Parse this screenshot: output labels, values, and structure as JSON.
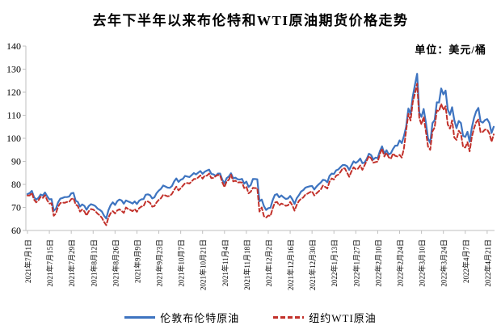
{
  "title": "去年下半年以来布伦特和WTI原油期货价格走势",
  "unit_label": "单位：美元/桶",
  "legend": {
    "brent_label": "伦敦布伦特原油",
    "wti_label": "纽约WTI原油"
  },
  "colors": {
    "brent": "#3E74C0",
    "wti": "#C2312B",
    "axis": "#BFBFBF",
    "text": "#000000"
  },
  "chart_data": {
    "type": "line",
    "title": "去年下半年以来布伦特和WTI原油期货价格走势",
    "ylabel": "美元/桶",
    "ylim": [
      60,
      140
    ],
    "ytick_step": 10,
    "grid": false,
    "legend_position": "bottom",
    "points_per_tick": 10,
    "x_tick_labels": [
      "2021年7月1日",
      "2021年7月15日",
      "2021年7月29日",
      "2021年8月12日",
      "2021年8月26日",
      "2021年9月9日",
      "2021年9月23日",
      "2021年10月7日",
      "2021年10月21日",
      "2021年11月4日",
      "2021年11月18日",
      "2021年12月2日",
      "2021年12月16日",
      "2021年12月30日",
      "2022年1月13日",
      "2022年1月27日",
      "2022年2月10日",
      "2022年2月24日",
      "2022年3月10日",
      "2022年3月24日",
      "2022年4月7日",
      "2022年4月21日"
    ],
    "series": [
      {
        "name": "伦敦布伦特原油",
        "color": "#3E74C0",
        "style": "solid",
        "values": [
          75.8,
          76.2,
          77.2,
          74.5,
          73.4,
          74.1,
          75.6,
          75.2,
          76.5,
          74.8,
          73.5,
          73.6,
          68.6,
          69.4,
          72.2,
          73.8,
          74.1,
          74.5,
          74.5,
          74.7,
          76.1,
          76.3,
          72.9,
          72.4,
          70.4,
          71.3,
          70.7,
          69.0,
          70.6,
          71.4,
          71.1,
          70.6,
          69.5,
          69.0,
          68.2,
          66.4,
          65.2,
          68.8,
          71.0,
          72.2,
          71.1,
          72.7,
          73.4,
          73.0,
          71.6,
          73.0,
          72.6,
          72.2,
          71.7,
          72.6,
          71.5,
          72.9,
          73.5,
          73.6,
          75.5,
          75.7,
          75.3,
          73.9,
          74.4,
          76.2,
          77.3,
          78.1,
          79.5,
          79.1,
          78.6,
          78.5,
          79.3,
          81.3,
          82.6,
          81.1,
          82.0,
          82.4,
          83.7,
          83.4,
          83.2,
          84.0,
          84.9,
          84.3,
          85.1,
          85.8,
          84.6,
          85.5,
          86.0,
          86.4,
          84.6,
          84.3,
          83.7,
          84.7,
          84.7,
          82.0,
          80.5,
          82.7,
          83.4,
          84.8,
          82.6,
          82.9,
          82.2,
          82.1,
          82.4,
          80.3,
          81.2,
          78.9,
          79.7,
          82.3,
          82.3,
          82.2,
          72.7,
          73.4,
          70.6,
          68.9,
          69.7,
          69.9,
          73.1,
          75.4,
          75.8,
          74.4,
          75.2,
          74.4,
          73.7,
          73.9,
          75.0,
          73.5,
          71.5,
          74.0,
          75.3,
          76.9,
          77.5,
          78.6,
          78.9,
          79.2,
          79.3,
          77.8,
          79.0,
          80.0,
          80.8,
          82.0,
          81.8,
          80.9,
          83.7,
          84.7,
          84.5,
          86.1,
          86.5,
          87.5,
          88.4,
          88.4,
          87.9,
          86.3,
          88.2,
          90.0,
          89.3,
          90.0,
          91.2,
          89.2,
          89.5,
          91.1,
          93.3,
          92.7,
          90.8,
          91.6,
          91.4,
          94.4,
          96.5,
          93.3,
          94.8,
          93.0,
          93.5,
          95.4,
          96.8,
          96.8,
          99.1,
          97.9,
          101.0,
          105.0,
          112.9,
          110.5,
          118.1,
          123.2,
          128.0,
          111.1,
          109.3,
          112.7,
          106.9,
          99.9,
          98.0,
          106.6,
          107.9,
          115.6,
          115.5,
          121.6,
          119.0,
          120.7,
          112.5,
          110.2,
          113.5,
          107.9,
          104.4,
          107.5,
          106.6,
          101.1,
          100.6,
          102.8,
          98.5,
          104.6,
          108.8,
          111.7,
          113.2,
          107.3,
          106.8,
          107.9,
          108.3,
          106.7,
          102.3,
          105.0
        ]
      },
      {
        "name": "纽约WTI原油",
        "color": "#C2312B",
        "style": "dashed",
        "values": [
          75.2,
          75.2,
          76.3,
          73.4,
          72.2,
          73.0,
          74.6,
          74.1,
          75.3,
          73.1,
          71.7,
          71.8,
          66.4,
          67.4,
          70.3,
          71.9,
          72.1,
          72.0,
          72.4,
          72.4,
          73.6,
          74.0,
          71.3,
          70.6,
          68.2,
          69.1,
          68.3,
          66.5,
          68.3,
          69.3,
          69.1,
          68.4,
          67.3,
          66.6,
          65.5,
          63.7,
          62.3,
          65.6,
          67.5,
          68.4,
          67.4,
          68.7,
          69.2,
          68.5,
          67.6,
          70.0,
          69.3,
          68.9,
          68.4,
          69.3,
          68.1,
          69.7,
          70.4,
          70.5,
          72.6,
          72.6,
          72.0,
          70.3,
          70.6,
          72.2,
          73.3,
          74.0,
          75.5,
          75.2,
          74.8,
          75.0,
          75.9,
          77.6,
          79.0,
          77.4,
          78.3,
          79.4,
          80.5,
          80.6,
          80.4,
          81.3,
          82.3,
          82.4,
          83.0,
          83.9,
          82.5,
          83.8,
          83.8,
          84.7,
          82.7,
          82.8,
          83.6,
          84.1,
          83.9,
          80.9,
          78.8,
          81.3,
          82.0,
          84.2,
          81.3,
          81.6,
          80.8,
          80.9,
          80.8,
          78.4,
          79.0,
          76.1,
          76.8,
          78.5,
          78.4,
          78.4,
          68.2,
          70.0,
          66.2,
          65.6,
          66.5,
          66.3,
          69.5,
          72.1,
          72.4,
          70.9,
          71.7,
          71.3,
          70.7,
          70.9,
          72.4,
          70.9,
          68.6,
          71.1,
          72.8,
          73.8,
          74.3,
          75.6,
          76.0,
          76.6,
          77.0,
          75.2,
          76.1,
          77.0,
          77.8,
          79.5,
          78.9,
          78.2,
          81.2,
          82.6,
          82.1,
          83.8,
          84.2,
          85.4,
          87.0,
          86.9,
          85.1,
          83.3,
          85.6,
          87.4,
          86.6,
          86.8,
          88.2,
          86.3,
          88.3,
          90.3,
          92.3,
          91.3,
          89.4,
          89.7,
          89.9,
          93.1,
          95.5,
          92.1,
          93.7,
          91.8,
          91.1,
          93.4,
          92.4,
          92.1,
          92.8,
          91.6,
          95.7,
          103.4,
          110.6,
          107.7,
          115.7,
          119.4,
          123.7,
          108.7,
          106.0,
          109.3,
          103.0,
          96.4,
          95.0,
          103.0,
          104.7,
          112.1,
          111.8,
          114.9,
          112.3,
          113.9,
          106.0,
          104.2,
          107.8,
          100.3,
          99.3,
          103.3,
          102.0,
          96.2,
          96.0,
          98.3,
          94.3,
          100.6,
          104.3,
          107.0,
          108.2,
          102.6,
          102.8,
          103.8,
          103.8,
          102.1,
          98.5,
          101.7
        ]
      }
    ]
  }
}
